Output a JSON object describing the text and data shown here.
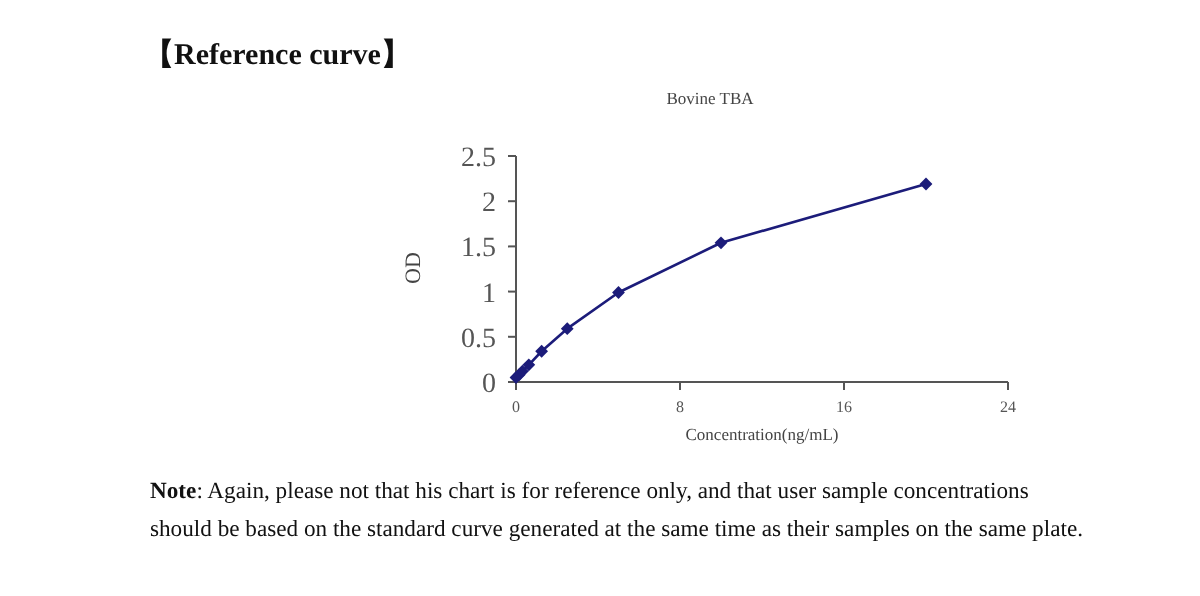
{
  "chart_data": {
    "type": "line",
    "title": "【Reference curve】",
    "subtitle": "Bovine TBA",
    "xlabel": "Concentration(ng/mL)",
    "ylabel": "OD",
    "x": [
      0,
      0.156,
      0.312,
      0.625,
      1.25,
      2.5,
      5,
      10,
      20
    ],
    "series": [
      {
        "color": "#1c1c7a",
        "values": [
          0.05,
          0.08,
          0.12,
          0.19,
          0.34,
          0.59,
          0.99,
          1.54,
          2.19
        ]
      }
    ],
    "xlim": [
      0,
      24
    ],
    "xticks": [
      0,
      8,
      16,
      24
    ],
    "ylim": [
      0,
      2.5
    ],
    "yticks": [
      0,
      0.5,
      1,
      1.5,
      2,
      2.5
    ],
    "marker": "diamond",
    "line_style": "solid",
    "annotations": [
      "**Note**: Again, please not that his chart is for reference only, and that user sample concentrations should be based on the standard curve generated at the same time as their samples on the same plate."
    ]
  }
}
